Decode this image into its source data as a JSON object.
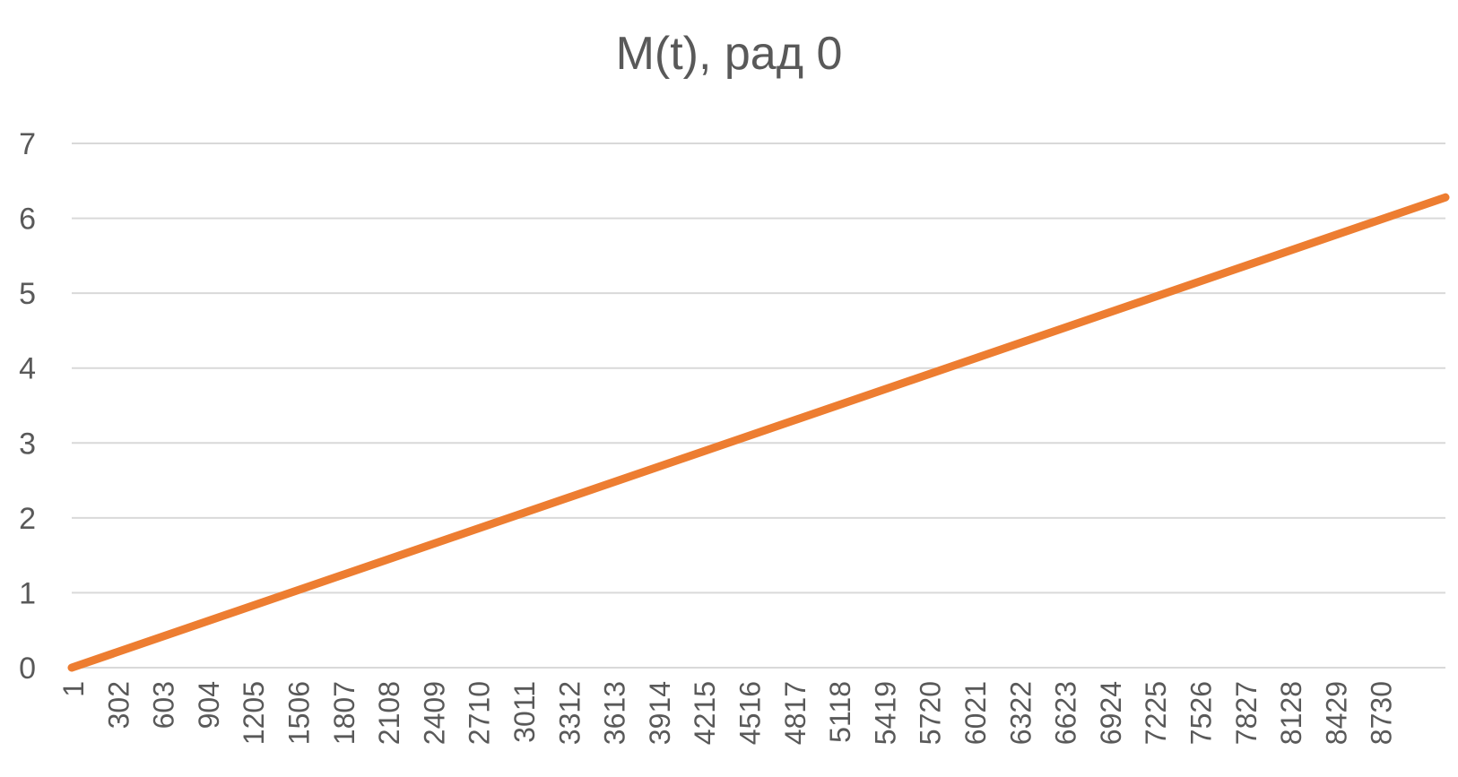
{
  "chart_data": {
    "type": "line",
    "title": "M(t), рад 0",
    "xlabel": "",
    "ylabel": "",
    "ylim": [
      0,
      7
    ],
    "yticks": [
      0,
      1,
      2,
      3,
      4,
      5,
      6,
      7
    ],
    "xticks": [
      "1",
      "302",
      "603",
      "904",
      "1205",
      "1506",
      "1807",
      "2108",
      "2409",
      "2710",
      "3011",
      "3312",
      "3613",
      "3914",
      "4215",
      "4516",
      "4817",
      "5118",
      "5419",
      "5720",
      "6021",
      "6322",
      "6623",
      "6924",
      "7225",
      "7526",
      "7827",
      "8128",
      "8429",
      "8730"
    ],
    "x_range": [
      1,
      9000
    ],
    "grid": true,
    "legend": "none",
    "series": [
      {
        "color": "#ED7D31",
        "x": [
          1,
          9000
        ],
        "values": [
          0,
          6.28
        ]
      }
    ]
  }
}
